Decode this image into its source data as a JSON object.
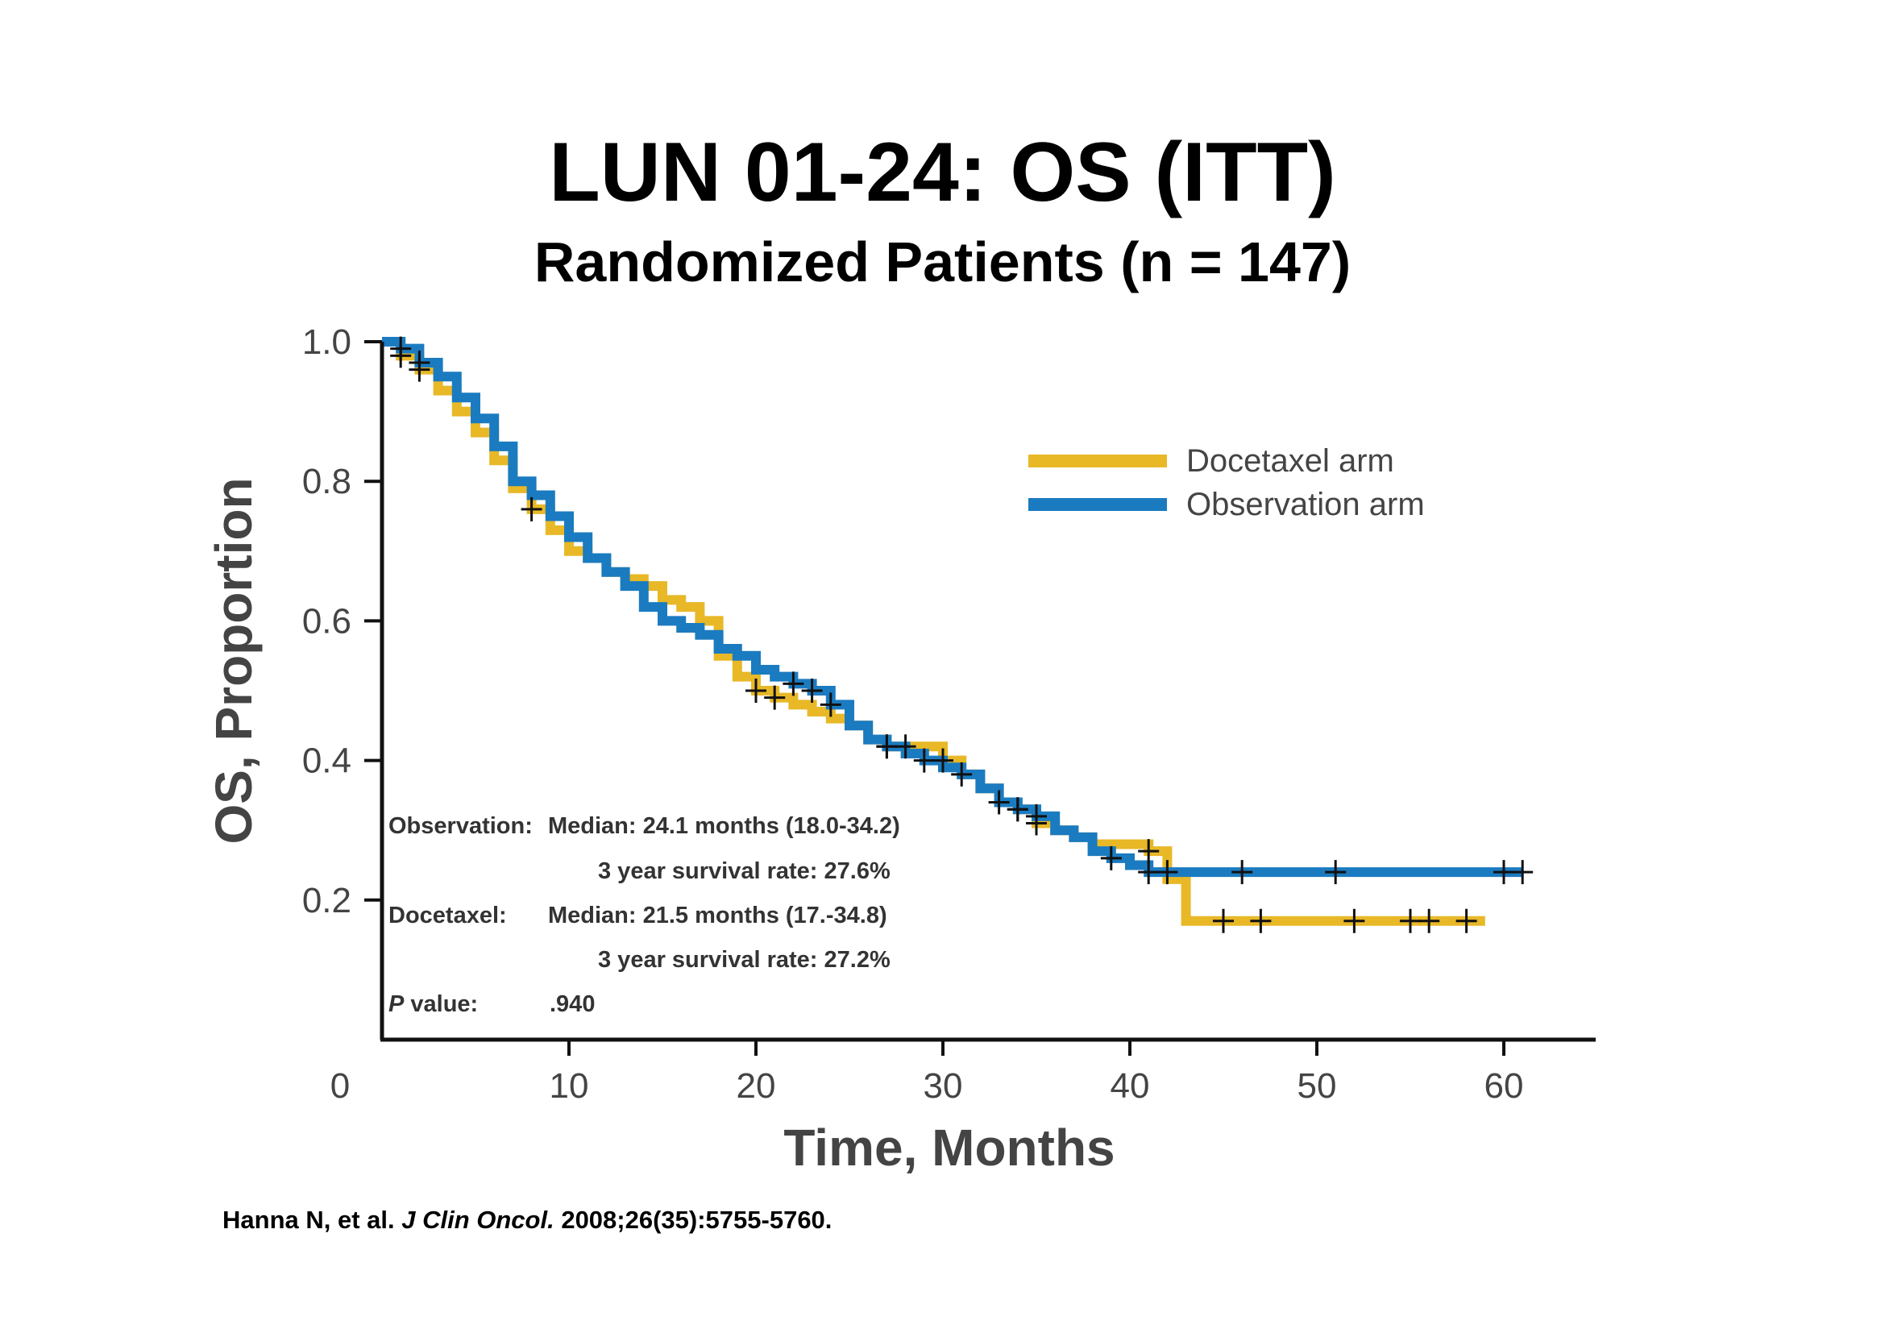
{
  "slide": {
    "title": "LUN 01-24: OS (ITT)",
    "subtitle": "Randomized Patients (n = 147)",
    "citation": {
      "authors": "Hanna N, et al.",
      "journal": "J Clin Oncol.",
      "details": "2008;26(35):5755-5760."
    }
  },
  "chart_data": {
    "type": "line",
    "subtype": "kaplan-meier step",
    "xlabel": "Time, Months",
    "ylabel": "OS, Proportion",
    "xlim": [
      0,
      65
    ],
    "ylim": [
      0,
      1.0
    ],
    "x_ticks": [
      0,
      10,
      20,
      30,
      40,
      50,
      60
    ],
    "y_ticks": [
      0.2,
      0.4,
      0.6,
      0.8,
      1.0
    ],
    "y_tick_labels": [
      "0.2",
      "0.4",
      "0.6",
      "0.8",
      "1.0"
    ],
    "grid": false,
    "legend_position": "top-right",
    "series": [
      {
        "name": "Docetaxel arm",
        "color": "#E8B827",
        "x": [
          0,
          1,
          2,
          3,
          4,
          5,
          6,
          7,
          8,
          9,
          10,
          11,
          12,
          13,
          14,
          15,
          16,
          17,
          18,
          19,
          20,
          21,
          22,
          23,
          24,
          25,
          26,
          27,
          28,
          29,
          30,
          31,
          32,
          33,
          34,
          35,
          36,
          37,
          38,
          39,
          40,
          41,
          42,
          43,
          44,
          45,
          50,
          55,
          59
        ],
        "y": [
          1.0,
          0.98,
          0.96,
          0.93,
          0.9,
          0.87,
          0.83,
          0.79,
          0.76,
          0.73,
          0.7,
          0.69,
          0.67,
          0.66,
          0.65,
          0.63,
          0.62,
          0.6,
          0.55,
          0.52,
          0.5,
          0.49,
          0.48,
          0.47,
          0.46,
          0.45,
          0.43,
          0.42,
          0.42,
          0.42,
          0.4,
          0.38,
          0.36,
          0.34,
          0.33,
          0.31,
          0.3,
          0.29,
          0.28,
          0.28,
          0.28,
          0.27,
          0.23,
          0.17,
          0.17,
          0.17,
          0.17,
          0.17,
          0.17
        ]
      },
      {
        "name": "Observation arm",
        "color": "#1B7BC0",
        "x": [
          0,
          1,
          2,
          3,
          4,
          5,
          6,
          7,
          8,
          9,
          10,
          11,
          12,
          13,
          14,
          15,
          16,
          17,
          18,
          19,
          20,
          21,
          22,
          23,
          24,
          25,
          26,
          27,
          28,
          29,
          30,
          31,
          32,
          33,
          34,
          35,
          36,
          37,
          38,
          39,
          40,
          41,
          42,
          43,
          45,
          50,
          55,
          60,
          61
        ],
        "y": [
          1.0,
          0.99,
          0.97,
          0.95,
          0.92,
          0.89,
          0.85,
          0.8,
          0.78,
          0.75,
          0.72,
          0.69,
          0.67,
          0.65,
          0.62,
          0.6,
          0.59,
          0.58,
          0.56,
          0.55,
          0.53,
          0.52,
          0.51,
          0.5,
          0.48,
          0.45,
          0.43,
          0.42,
          0.41,
          0.4,
          0.39,
          0.38,
          0.36,
          0.34,
          0.33,
          0.32,
          0.3,
          0.29,
          0.27,
          0.26,
          0.25,
          0.24,
          0.24,
          0.24,
          0.24,
          0.24,
          0.24,
          0.24,
          0.24
        ]
      }
    ],
    "censor_marks": [
      {
        "series": "Docetaxel arm",
        "x": [
          1,
          2,
          8,
          20,
          21,
          27,
          28,
          30,
          31,
          34,
          35,
          41,
          45,
          47,
          52,
          55,
          56,
          58
        ]
      },
      {
        "series": "Observation arm",
        "x": [
          1,
          2,
          22,
          23,
          24,
          27,
          29,
          33,
          34,
          35,
          39,
          41,
          42,
          46,
          51,
          60,
          61
        ]
      }
    ],
    "annotations": [
      {
        "label": "Observation:",
        "value": "Median: 24.1 months (18.0-34.2)"
      },
      {
        "label": "",
        "value": "3 year survival rate: 27.6%"
      },
      {
        "label": "Docetaxel:",
        "value": "Median: 21.5 months (17.-34.8)"
      },
      {
        "label": "",
        "value": "3 year survival rate: 27.2%"
      },
      {
        "label": "P value:",
        "value": ".940"
      }
    ]
  }
}
